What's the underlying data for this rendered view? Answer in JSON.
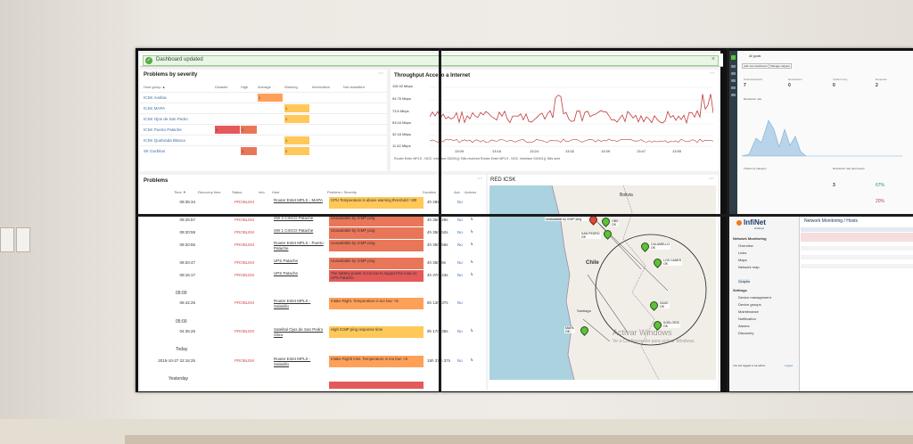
{
  "notification": {
    "message": "Dashboard updated"
  },
  "severity": {
    "title": "Problems by severity",
    "columns": [
      "Host group ▲",
      "Disaster",
      "High",
      "Average",
      "Warning",
      "Information",
      "Not classified"
    ],
    "rows": [
      {
        "host": "ICSK Andina",
        "average": "1"
      },
      {
        "host": "ICSK MAPA",
        "warning": "1"
      },
      {
        "host": "ICSK Ojos de San Pedro",
        "warning": "1"
      },
      {
        "host": "ICSK Puerto Patache",
        "disaster": "1",
        "high": "1"
      },
      {
        "host": "ICSK Quebrada Blanca",
        "warning": "1"
      },
      {
        "host": "SK Gorbitus",
        "high": "1",
        "warning": "2"
      }
    ]
  },
  "throughput": {
    "title": "Throughput Acceso a Internet",
    "y_ticks": [
      "115.92 Mbps",
      "94.76 Mbps",
      "73.6 Mbps",
      "53.04 Mbps",
      "32.16 Mbps",
      "11.52 Mbps"
    ],
    "x_ticks": [
      "13:09",
      "13:16",
      "13:24",
      "13:32",
      "13:39",
      "13:47",
      "13:55"
    ],
    "legend": "Router Enter MPLS - NOC: Interface Gi0/0/1(): Bits received   Router Enter MPLS - NOC: Interface Gi0/0/1(): Bits sent"
  },
  "problems": {
    "title": "Problems",
    "columns": [
      "Time ▼",
      "Recovery time",
      "Status",
      "Info",
      "Host",
      "Problem • Severity",
      "Duration",
      "Ack",
      "Actions"
    ],
    "status_label": "PROBLEM",
    "timeline": [
      "09:00",
      "05:00",
      "Today",
      "Yesterday"
    ],
    "rows": [
      {
        "time": "09:35:34",
        "host": "Router Enlet MPLS - MAPA",
        "problem": "CPU Temperature is above warning threshold: >80",
        "duration": "4h 28s",
        "ack": "No",
        "sev": "warning"
      },
      {
        "time": "09:25:57",
        "host": "SW 2 CISCO Patache",
        "problem": "Unavailable by ICMP ping",
        "duration": "4h 35m 49s",
        "ack": "No",
        "sev": "high"
      },
      {
        "time": "09:20:59",
        "host": "SW 1 CISCO Patache",
        "problem": "Unavailable by ICMP ping",
        "duration": "4h 35m 52s",
        "ack": "No",
        "sev": "high"
      },
      {
        "time": "09:20:55",
        "host": "Router Enlet MPLS - Puerto Patache",
        "problem": "Unavailable by ICMP ping",
        "duration": "4h 35m 56s",
        "ack": "No",
        "sev": "high"
      },
      {
        "time": "09:20:47",
        "host": "UPS Patache",
        "problem": "Unavailable by ICMP ping",
        "duration": "4h 35m 8s",
        "ack": "No",
        "sev": "high"
      },
      {
        "time": "09:16:17",
        "host": "UPS Patache",
        "problem": "The battery power is too low to support the load on UPS Patache",
        "duration": "4h 37m 43s",
        "ack": "No",
        "sev": "disaster"
      },
      {
        "time": "06:42:25",
        "host": "Router Enlet MPLS - Salaidilo",
        "problem": "Intake Right. Temperature is too low: <5",
        "duration": "6h 13m 37s",
        "ack": "No",
        "sev": "average"
      },
      {
        "time": "04:36:26",
        "host": "Satelital Ojos de San Pedro Obra",
        "problem": "High ICMP ping response time",
        "duration": "9h 17m 35s",
        "ack": "No",
        "sev": "warning"
      },
      {
        "time": "2015-10-27 22:16:25",
        "host": "Router Enlet MPLS - Salaidilo",
        "problem": "Intake Right/ inlet. Temperature is too low: <5",
        "duration": "15h 37m 37s",
        "ack": "No",
        "sev": "average"
      }
    ]
  },
  "map": {
    "title": "RED ICSK",
    "countries": [
      "Bolivia",
      "Chile"
    ],
    "pins": [
      {
        "label": "ÑIRACHE",
        "sub": "Unavailable by ICMP ping",
        "color": "red"
      },
      {
        "label": "OBS",
        "sub": "OK",
        "color": "green"
      },
      {
        "label": "SAN PEDRO",
        "sub": "OK",
        "color": "green"
      },
      {
        "label": "CALAMELLO",
        "sub": "OK",
        "color": "green"
      },
      {
        "label": "LOS CANES",
        "sub": "OK",
        "color": "green"
      },
      {
        "label": "SAGE",
        "sub": "OK",
        "color": "green"
      },
      {
        "label": "KOELORIS",
        "sub": "OK",
        "color": "green"
      },
      {
        "label": "MAPA",
        "sub": "OK",
        "color": "green"
      }
    ],
    "city": "Santiago",
    "watermark_title": "Activar Windows",
    "watermark_sub": "Ve a Configuración para activar Windows."
  },
  "top_right": {
    "filter": "All goals",
    "buttons": [
      "Add new dashboard",
      "Manage widgets"
    ],
    "stats": [
      "Total Helpdesks",
      "Resolutions",
      "Incident Avg",
      "Requests"
    ],
    "values": [
      "7",
      "0",
      "0",
      "2"
    ],
    "chart_title": "Resolution rate",
    "bottom_title": "Tickets by category",
    "bottom_title2": "Resolution rate (last week)",
    "bottom_value": "3",
    "pcts": [
      "67%",
      "20%"
    ]
  },
  "netmon": {
    "brand": "InfiNet",
    "brand_sub": "wireless",
    "title": "Network Monitoring / Hosts",
    "sidebar_group": "Network Monitoring",
    "sidebar_items": [
      "Overview",
      "Links",
      "Maps",
      "Network map",
      "Graphs"
    ],
    "sidebar_group2": "Settings",
    "sidebar_items2": [
      "Device management",
      "Device groups",
      "Maintenance",
      "Notification",
      "Alarms",
      "Discovery"
    ],
    "login_text": "You are logged in as admin",
    "logout": "Logout"
  },
  "wall_switches": [
    "",
    ""
  ]
}
